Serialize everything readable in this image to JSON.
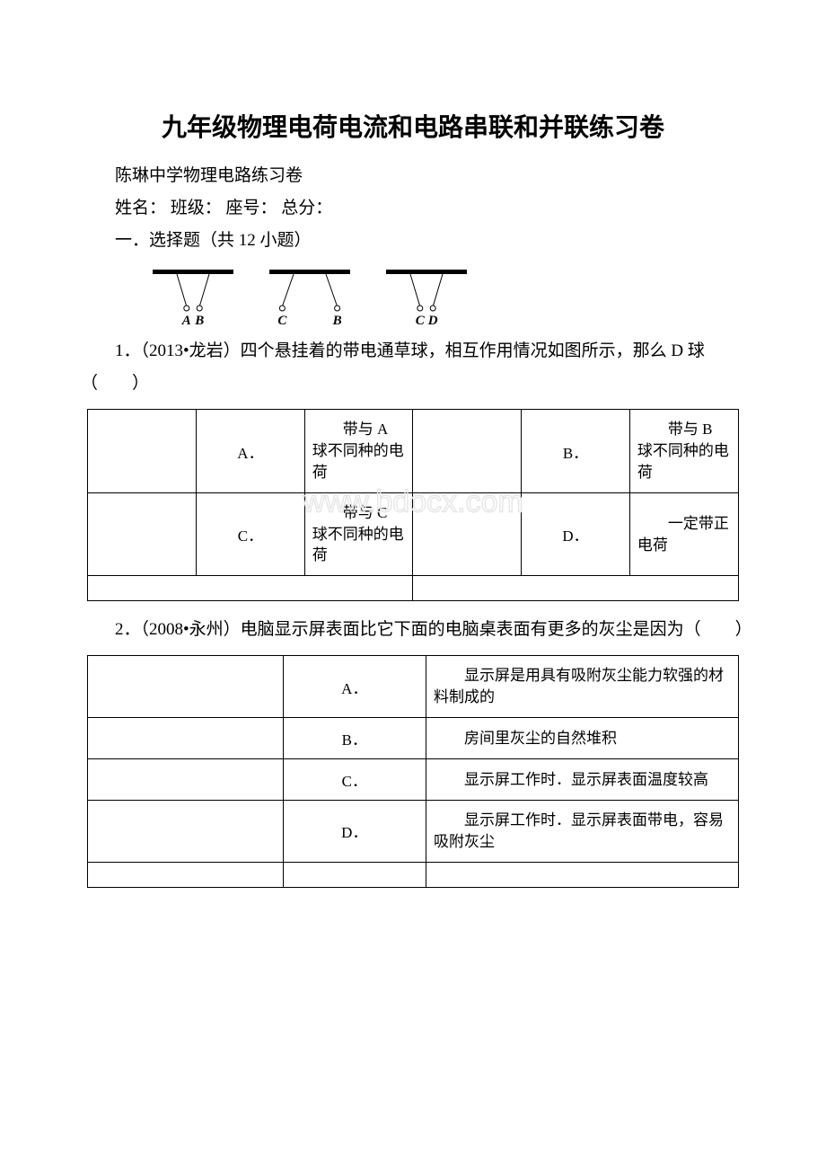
{
  "title": "九年级物理电荷电流和电路串联和并联练习卷",
  "subtitle": "陈琳中学物理电路练习卷",
  "form_line": "姓名：   班级：   座号：   总分：",
  "section": "一．选择题（共 12 小题）",
  "diagram": {
    "groups": [
      {
        "left": "A",
        "right": "B",
        "mode": "attract"
      },
      {
        "left": "C",
        "right": "B",
        "mode": "repel"
      },
      {
        "left": "C",
        "right": "D",
        "mode": "attract"
      }
    ],
    "bar_color": "#000000",
    "label_font": "italic 15px 'Times New Roman', serif"
  },
  "q1": {
    "text": "1．（2013•龙岩）四个悬挂着的带电通草球，相互作用情况如图所示，那么 D 球（　　）",
    "options": [
      {
        "letter": "A．",
        "text": "带与 A 球不同种的电荷"
      },
      {
        "letter": "B．",
        "text": "带与 B 球不同种的电荷"
      },
      {
        "letter": "C．",
        "text": "带与 C 球不同种的电荷"
      },
      {
        "letter": "D．",
        "text": "一定带正电荷"
      }
    ],
    "watermark_text": "www.bdocx.com",
    "watermark_color": "#e6e6e6"
  },
  "q2": {
    "text": "2．（2008•永州）电脑显示屏表面比它下面的电脑桌表面有更多的灰尘是因为（　　）",
    "options": [
      {
        "letter": "A．",
        "text": "显示屏是用具有吸附灰尘能力软强的材料制成的"
      },
      {
        "letter": "B．",
        "text": "房间里灰尘的自然堆积"
      },
      {
        "letter": "C．",
        "text": "显示屏工作时．显示屏表面温度较高"
      },
      {
        "letter": "D．",
        "text": "显示屏工作时．显示屏表面带电，容易吸附灰尘"
      }
    ]
  }
}
